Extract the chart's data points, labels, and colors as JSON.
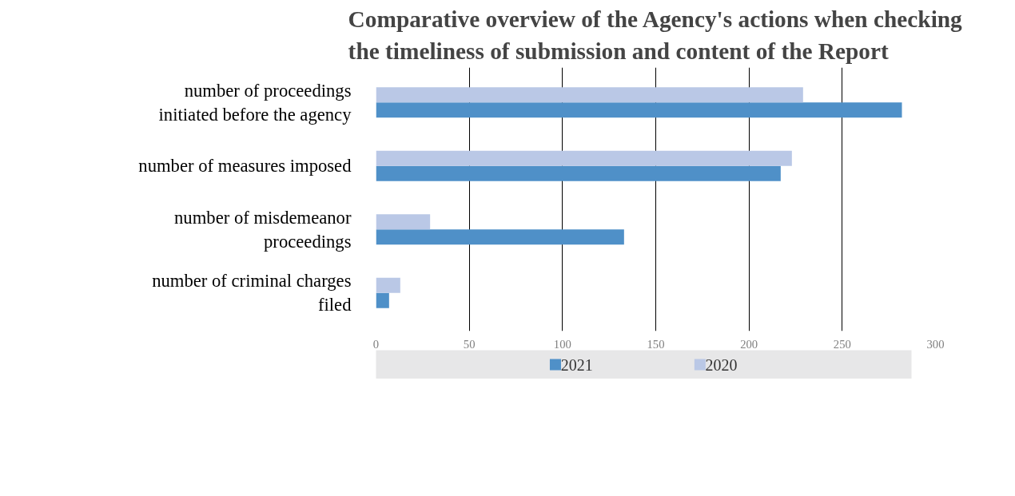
{
  "chart_data": {
    "type": "bar",
    "orientation": "horizontal",
    "title": "Comparative overview of the Agency's actions when checking\nthe timeliness of submission and content of the Report",
    "categories": [
      "number of proceedings initiated before the agency",
      "number of measures imposed",
      "number of misdemeanor proceedings",
      "number of criminal charges filed"
    ],
    "series": [
      {
        "name": "2021",
        "color": "#4f90c8",
        "values": [
          282,
          217,
          133,
          7
        ]
      },
      {
        "name": "2020",
        "color": "#bac8e6",
        "values": [
          229,
          223,
          29,
          13
        ]
      }
    ],
    "xlim": [
      0,
      300
    ],
    "xticks": [
      0,
      50,
      100,
      150,
      200,
      250,
      300
    ],
    "grid": "x",
    "legend": "bottom"
  }
}
